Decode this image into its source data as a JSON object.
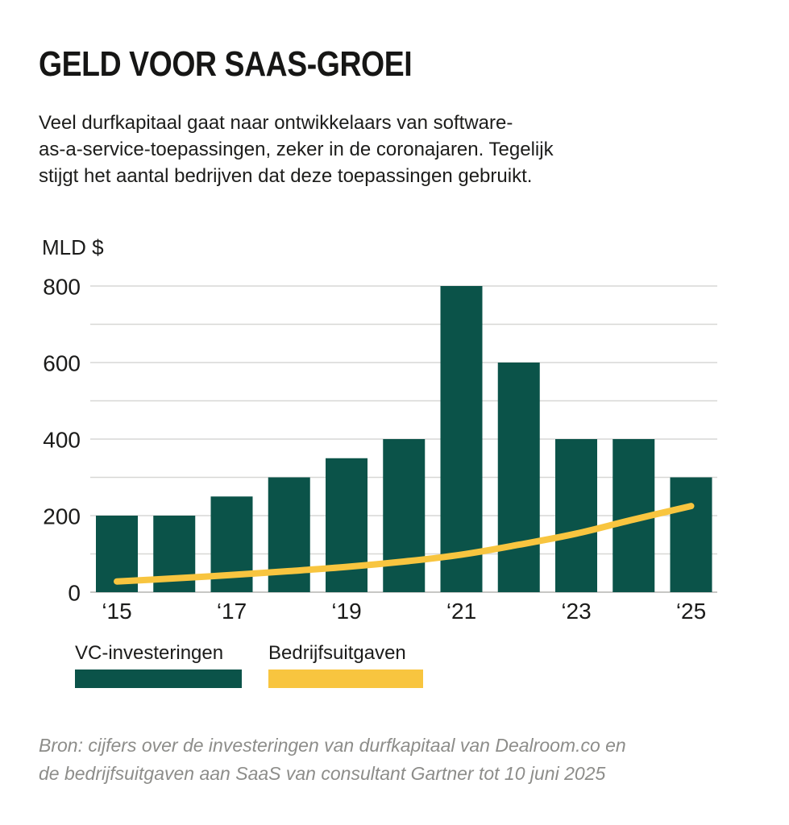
{
  "header": {
    "title": "GELD VOOR SAAS-GROEI",
    "subtitle_lines": [
      "Veel durfkapitaal gaat naar ontwikkelaars van software-",
      "as-a-service-toepassingen, zeker in de coronajaren. Tegelijk",
      "stijgt het aantal bedrijven dat deze toepassingen gebruikt."
    ]
  },
  "chart_data": {
    "type": "bar",
    "title": "GELD VOOR SAAS-GROEI",
    "unit_label": "MLD $",
    "categories": [
      "‘15",
      "‘16",
      "‘17",
      "‘18",
      "‘19",
      "‘20",
      "‘21",
      "‘22",
      "‘23",
      "‘24",
      "‘25"
    ],
    "x_tick_labels": [
      "‘15",
      "‘17",
      "‘19",
      "‘21",
      "‘23",
      "‘25"
    ],
    "series": [
      {
        "name": "VC-investeringen",
        "type": "bar",
        "color": "#0b5349",
        "values": [
          200,
          200,
          250,
          300,
          350,
          400,
          800,
          600,
          400,
          400,
          300
        ]
      },
      {
        "name": "Bedrijfsuitgaven",
        "type": "line",
        "color": "#f8c53f",
        "values": [
          28,
          36,
          45,
          55,
          66,
          80,
          98,
          124,
          153,
          190,
          225
        ]
      }
    ],
    "ylim": [
      0,
      800
    ],
    "y_tick_labels": [
      "0",
      "200",
      "400",
      "600",
      "800"
    ],
    "gridline_step": 100,
    "grid": true,
    "legend_position": "bottom",
    "grid_color": "#d7d7d5",
    "axis_text_color": "#1b1b1a"
  },
  "legend": {
    "items": [
      {
        "label": "VC-investeringen",
        "color": "#0b5349"
      },
      {
        "label": "Bedrijfsuitgaven",
        "color": "#f8c53f"
      }
    ]
  },
  "source_lines": [
    "Bron: cijfers over de investeringen van durfkapitaal van Dealroom.co en",
    "de bedrijfsuitgaven aan SaaS van consultant Gartner tot 10 juni 2025"
  ]
}
